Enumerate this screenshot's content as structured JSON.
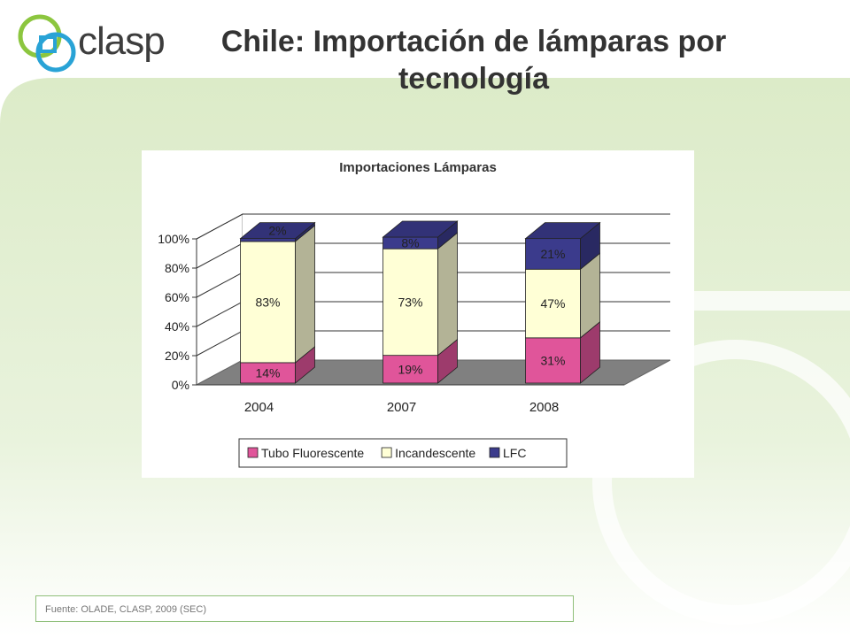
{
  "header": {
    "logo_text": "clasp",
    "title_line1": "Chile: Importación de lámparas por",
    "title_line2": "tecnología"
  },
  "footer": {
    "source": "Fuente:  OLADE, CLASP,  2009 (SEC)"
  },
  "colors": {
    "tubo": "#e0559a",
    "incandescente": "#ffffd6",
    "lfc": "#3b3b8c",
    "accent_green": "#dfeed0",
    "logo_green": "#8cc63f",
    "logo_blue": "#29a3d6"
  },
  "chart_data": {
    "type": "bar",
    "stacked": true,
    "three_d": true,
    "title": "Importaciones Lámparas",
    "categories": [
      "2004",
      "2007",
      "2008"
    ],
    "series": [
      {
        "name": "Tubo Fluorescente",
        "values": [
          14,
          19,
          31
        ],
        "labels": [
          "14%",
          "19%",
          "31%"
        ]
      },
      {
        "name": "Incandescente",
        "values": [
          83,
          73,
          47
        ],
        "labels": [
          "83%",
          "73%",
          "47%"
        ]
      },
      {
        "name": "LFC",
        "values": [
          2,
          8,
          21
        ],
        "labels": [
          "2%",
          "8%",
          "21%"
        ]
      }
    ],
    "y_ticks": [
      "0%",
      "20%",
      "40%",
      "60%",
      "80%",
      "100%"
    ],
    "ylim": [
      0,
      100
    ],
    "grid": true,
    "legend_position": "bottom"
  }
}
